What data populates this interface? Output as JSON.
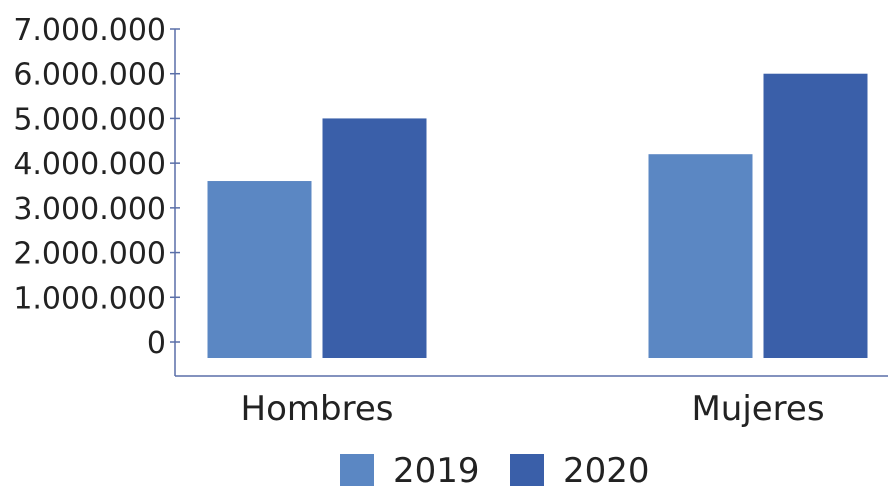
{
  "chart_data": {
    "type": "bar",
    "categories": [
      "Hombres",
      "Mujeres"
    ],
    "series": [
      {
        "name": "2019",
        "values": [
          3600000,
          4200000
        ],
        "color": "#5b87c3"
      },
      {
        "name": "2020",
        "values": [
          5000000,
          6000000
        ],
        "color": "#3a5fa9"
      }
    ],
    "yticks": [
      "0",
      "1.000.000",
      "2.000.000",
      "3.000.000",
      "4.000.000",
      "5.000.000",
      "6.000.000",
      "7.000.000"
    ],
    "ylim": [
      0,
      7000000
    ],
    "grid": false,
    "legend_position": "bottom",
    "axis_color": "#5a6fa8"
  }
}
